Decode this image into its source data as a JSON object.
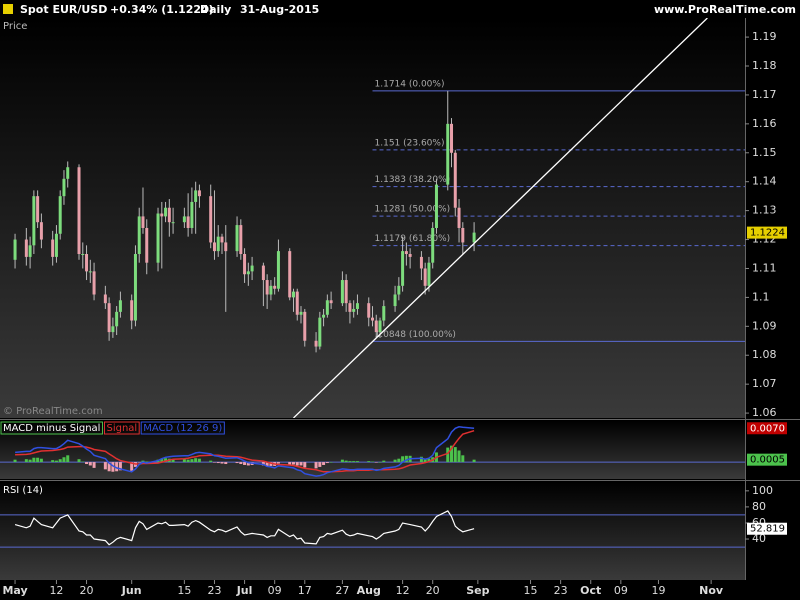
{
  "header": {
    "symbol": "Spot EUR/USD",
    "change": "+0.34% (1.1224)",
    "period": "Daily",
    "date": "31-Aug-2015",
    "site": "www.ProRealTime.com"
  },
  "chart_data": [
    {
      "type": "candlestick",
      "title": "Price",
      "watermark": "© ProRealTime.com",
      "x": [
        "2015-05-01",
        "2015-05-04",
        "2015-05-05",
        "2015-05-06",
        "2015-05-07",
        "2015-05-08",
        "2015-05-11",
        "2015-05-12",
        "2015-05-13",
        "2015-05-14",
        "2015-05-15",
        "2015-05-18",
        "2015-05-19",
        "2015-05-20",
        "2015-05-21",
        "2015-05-22",
        "2015-05-25",
        "2015-05-26",
        "2015-05-27",
        "2015-05-28",
        "2015-05-29",
        "2015-06-01",
        "2015-06-02",
        "2015-06-03",
        "2015-06-04",
        "2015-06-05",
        "2015-06-08",
        "2015-06-09",
        "2015-06-10",
        "2015-06-11",
        "2015-06-12",
        "2015-06-15",
        "2015-06-16",
        "2015-06-17",
        "2015-06-18",
        "2015-06-19",
        "2015-06-22",
        "2015-06-23",
        "2015-06-24",
        "2015-06-25",
        "2015-06-26",
        "2015-06-29",
        "2015-06-30",
        "2015-07-01",
        "2015-07-02",
        "2015-07-03",
        "2015-07-06",
        "2015-07-07",
        "2015-07-08",
        "2015-07-09",
        "2015-07-10",
        "2015-07-13",
        "2015-07-14",
        "2015-07-15",
        "2015-07-16",
        "2015-07-17",
        "2015-07-20",
        "2015-07-21",
        "2015-07-22",
        "2015-07-23",
        "2015-07-24",
        "2015-07-27",
        "2015-07-28",
        "2015-07-29",
        "2015-07-30",
        "2015-07-31",
        "2015-08-03",
        "2015-08-04",
        "2015-08-05",
        "2015-08-06",
        "2015-08-07",
        "2015-08-10",
        "2015-08-11",
        "2015-08-12",
        "2015-08-13",
        "2015-08-14",
        "2015-08-17",
        "2015-08-18",
        "2015-08-19",
        "2015-08-20",
        "2015-08-21",
        "2015-08-24",
        "2015-08-25",
        "2015-08-26",
        "2015-08-27",
        "2015-08-28",
        "2015-08-31"
      ],
      "open": [
        1.113,
        1.12,
        1.114,
        1.118,
        1.135,
        1.126,
        1.12,
        1.114,
        1.122,
        1.135,
        1.141,
        1.145,
        1.115,
        1.115,
        1.109,
        1.109,
        1.101,
        1.098,
        1.088,
        1.09,
        1.095,
        1.099,
        1.092,
        1.115,
        1.128,
        1.124,
        1.112,
        1.129,
        1.128,
        1.131,
        1.126,
        1.126,
        1.128,
        1.124,
        1.133,
        1.137,
        1.135,
        1.119,
        1.116,
        1.121,
        1.119,
        1.116,
        1.125,
        1.115,
        1.108,
        1.109,
        1.111,
        1.106,
        1.101,
        1.104,
        1.103,
        1.116,
        1.1,
        1.102,
        1.094,
        1.095,
        1.085,
        1.083,
        1.093,
        1.094,
        1.099,
        1.098,
        1.106,
        1.098,
        1.095,
        1.096,
        1.098,
        1.093,
        1.092,
        1.088,
        1.092,
        1.097,
        1.101,
        1.104,
        1.116,
        1.115,
        1.114,
        1.11,
        1.104,
        1.112,
        1.124,
        1.139,
        1.16,
        1.15,
        1.131,
        1.124,
        1.119
      ],
      "high": [
        1.122,
        1.124,
        1.121,
        1.137,
        1.137,
        1.129,
        1.123,
        1.125,
        1.137,
        1.144,
        1.147,
        1.146,
        1.119,
        1.118,
        1.113,
        1.112,
        1.104,
        1.1,
        1.093,
        1.097,
        1.102,
        1.101,
        1.118,
        1.131,
        1.138,
        1.127,
        1.131,
        1.133,
        1.133,
        1.134,
        1.131,
        1.131,
        1.136,
        1.138,
        1.14,
        1.139,
        1.139,
        1.137,
        1.125,
        1.122,
        1.125,
        1.128,
        1.127,
        1.117,
        1.112,
        1.114,
        1.112,
        1.108,
        1.106,
        1.107,
        1.12,
        1.117,
        1.103,
        1.103,
        1.097,
        1.096,
        1.088,
        1.095,
        1.096,
        1.101,
        1.102,
        1.109,
        1.108,
        1.099,
        1.099,
        1.101,
        1.1,
        1.097,
        1.094,
        1.093,
        1.099,
        1.104,
        1.107,
        1.121,
        1.119,
        1.117,
        1.116,
        1.112,
        1.114,
        1.126,
        1.141,
        1.1714,
        1.162,
        1.151,
        1.134,
        1.126,
        1.126
      ],
      "low": [
        1.11,
        1.111,
        1.11,
        1.115,
        1.124,
        1.117,
        1.111,
        1.112,
        1.12,
        1.132,
        1.138,
        1.113,
        1.11,
        1.106,
        1.105,
        1.099,
        1.096,
        1.085,
        1.086,
        1.087,
        1.093,
        1.089,
        1.09,
        1.112,
        1.122,
        1.108,
        1.109,
        1.11,
        1.126,
        1.121,
        1.122,
        1.124,
        1.121,
        1.122,
        1.122,
        1.131,
        1.117,
        1.113,
        1.114,
        1.115,
        1.095,
        1.114,
        1.113,
        1.105,
        1.104,
        1.106,
        1.097,
        1.096,
        1.099,
        1.101,
        1.102,
        1.099,
        1.095,
        1.092,
        1.091,
        1.083,
        1.081,
        1.082,
        1.09,
        1.093,
        1.096,
        1.097,
        1.095,
        1.091,
        1.093,
        1.094,
        1.09,
        1.09,
        1.086,
        1.086,
        1.09,
        1.095,
        1.099,
        1.102,
        1.111,
        1.11,
        1.106,
        1.101,
        1.102,
        1.11,
        1.122,
        1.137,
        1.145,
        1.128,
        1.119,
        1.115,
        1.116
      ],
      "close": [
        1.12,
        1.114,
        1.118,
        1.135,
        1.126,
        1.12,
        1.114,
        1.122,
        1.135,
        1.141,
        1.145,
        1.115,
        1.115,
        1.109,
        1.109,
        1.101,
        1.098,
        1.088,
        1.09,
        1.095,
        1.099,
        1.092,
        1.115,
        1.128,
        1.124,
        1.112,
        1.129,
        1.128,
        1.131,
        1.126,
        1.126,
        1.128,
        1.124,
        1.133,
        1.137,
        1.135,
        1.119,
        1.116,
        1.121,
        1.119,
        1.116,
        1.125,
        1.115,
        1.108,
        1.109,
        1.111,
        1.106,
        1.101,
        1.104,
        1.103,
        1.116,
        1.1,
        1.102,
        1.094,
        1.095,
        1.085,
        1.083,
        1.093,
        1.094,
        1.099,
        1.098,
        1.106,
        1.098,
        1.095,
        1.096,
        1.098,
        1.093,
        1.092,
        1.088,
        1.092,
        1.097,
        1.101,
        1.104,
        1.116,
        1.115,
        1.114,
        1.11,
        1.104,
        1.112,
        1.124,
        1.139,
        1.16,
        1.15,
        1.131,
        1.124,
        1.119,
        1.1224
      ],
      "up_color": "#7ddc7d",
      "down_color": "#e8a0aa",
      "wick_color": "#bbbbbb",
      "last_color": "#e6cf00",
      "xlim": [
        "2015-04-27",
        "2015-11-11"
      ],
      "xticks": [
        {
          "value": "2015-05-01",
          "label": "May"
        },
        {
          "value": "2015-05-12",
          "label": "12"
        },
        {
          "value": "2015-05-20",
          "label": "20"
        },
        {
          "value": "2015-06-01",
          "label": "Jun"
        },
        {
          "value": "2015-06-15",
          "label": "15"
        },
        {
          "value": "2015-06-23",
          "label": "23"
        },
        {
          "value": "2015-07-01",
          "label": "Jul"
        },
        {
          "value": "2015-07-09",
          "label": "09"
        },
        {
          "value": "2015-07-17",
          "label": "17"
        },
        {
          "value": "2015-07-27",
          "label": "27"
        },
        {
          "value": "2015-08-03",
          "label": "Aug"
        },
        {
          "value": "2015-08-12",
          "label": "12"
        },
        {
          "value": "2015-08-20",
          "label": "20"
        },
        {
          "value": "2015-09-01",
          "label": "Sep"
        },
        {
          "value": "2015-09-15",
          "label": "15"
        },
        {
          "value": "2015-09-23",
          "label": "23"
        },
        {
          "value": "2015-10-01",
          "label": "Oct"
        },
        {
          "value": "2015-10-09",
          "label": "09"
        },
        {
          "value": "2015-10-19",
          "label": "19"
        },
        {
          "value": "2015-11-02",
          "label": "Nov"
        }
      ],
      "ylim": [
        1.0583,
        1.1966
      ],
      "yticks": [
        1.06,
        1.07,
        1.08,
        1.09,
        1.1,
        1.11,
        1.12,
        1.13,
        1.14,
        1.15,
        1.16,
        1.17,
        1.18,
        1.19
      ],
      "fib_color": "#5a6ad0",
      "fib_from": "2015-08-04",
      "fib": [
        {
          "value": 1.1714,
          "label": "1.1714 (0.00%)",
          "style": "solid"
        },
        {
          "value": 1.151,
          "label": "1.151 (23.60%)",
          "style": "dashed"
        },
        {
          "value": 1.1383,
          "label": "1.1383 (38.20%)",
          "style": "dashed"
        },
        {
          "value": 1.1281,
          "label": "1.1281 (50.00%)",
          "style": "dashed"
        },
        {
          "value": 1.1179,
          "label": "1.1179 (61.80%)",
          "style": "dashed"
        },
        {
          "value": 1.0848,
          "label": "1.0848 (100.00%)",
          "style": "solid"
        }
      ],
      "trendline": {
        "x": [
          "2015-07-14",
          "2015-11-01"
        ],
        "y": [
          1.0583,
          1.1966
        ],
        "color": "#ffffff"
      }
    },
    {
      "type": "macd",
      "ylim": [
        -0.0035,
        0.0085
      ],
      "zero_color": "#5a6ad0",
      "series": [
        {
          "name": "MACD minus Signal",
          "color": "#4cc24c",
          "negative_color": "#f0a0b0",
          "values": [
            0.0005,
            0.0006,
            0.0005,
            0.0009,
            0.0009,
            0.0007,
            0.0004,
            0.0003,
            0.0006,
            0.001,
            0.0014,
            0.0006,
            0.0001,
            -0.0004,
            -0.0007,
            -0.0012,
            -0.0015,
            -0.0019,
            -0.002,
            -0.0019,
            -0.0017,
            -0.0018,
            -0.001,
            -0.0001,
            0.0003,
            0.0001,
            0.0005,
            0.0007,
            0.0008,
            0.0007,
            0.0006,
            0.0006,
            0.0005,
            0.0006,
            0.0008,
            0.0007,
            0.0003,
            -0.0001,
            -0.0002,
            -0.0003,
            -0.0004,
            -0.0002,
            -0.0004,
            -0.0006,
            -0.0007,
            -0.0006,
            -0.0007,
            -0.0009,
            -0.0008,
            -0.0008,
            -0.0003,
            -0.0005,
            -0.0005,
            -0.0007,
            -0.0007,
            -0.0011,
            -0.0013,
            -0.001,
            -0.0006,
            -0.0002,
            0,
            0.0005,
            0.0003,
            0.0002,
            0.0002,
            0.0002,
            0.0002,
            0.0001,
            -0.0001,
            0,
            0.0003,
            0.0005,
            0.0007,
            0.0012,
            0.0013,
            0.0013,
            0.0011,
            0.0007,
            0.0007,
            0.001,
            0.002,
            0.003,
            0.0034,
            0.0031,
            0.0024,
            0.0014,
            0.0005
          ]
        },
        {
          "name": "Signal",
          "color": "#e03030",
          "values": [
            0.0015,
            0.0016,
            0.0017,
            0.0019,
            0.0021,
            0.0023,
            0.0024,
            0.0025,
            0.0026,
            0.0028,
            0.0031,
            0.0032,
            0.0032,
            0.0031,
            0.0029,
            0.0026,
            0.0022,
            0.0017,
            0.0012,
            0.0007,
            0.0003,
            -0.0002,
            -0.0004,
            -0.0004,
            -0.0003,
            -0.0003,
            -0.0002,
            0,
            0.0002,
            0.0004,
            0.0006,
            0.0007,
            0.0008,
            0.001,
            0.0011,
            0.0013,
            0.0014,
            0.0014,
            0.0014,
            0.0013,
            0.0012,
            0.0011,
            0.001,
            0.0008,
            0.0006,
            0.0004,
            0.0002,
            0,
            -0.0002,
            -0.0004,
            -0.0005,
            -0.0006,
            -0.0007,
            -0.0009,
            -0.0011,
            -0.0013,
            -0.0016,
            -0.0018,
            -0.002,
            -0.002,
            -0.002,
            -0.0019,
            -0.0018,
            -0.0018,
            -0.0018,
            -0.0017,
            -0.0017,
            -0.0016,
            -0.0016,
            -0.0016,
            -0.0016,
            -0.0015,
            -0.0014,
            -0.0012,
            -0.0009,
            -0.0006,
            -0.0003,
            -0.0001,
            0.0001,
            0.0004,
            0.001,
            0.0018,
            0.0028,
            0.0039,
            0.0049,
            0.0058,
            0.0065
          ]
        },
        {
          "name": "MACD (12 26 9)",
          "color": "#3050e0",
          "last_label": "0.0070",
          "last_color": "#c00000",
          "values": [
            0.002,
            0.0022,
            0.0022,
            0.0028,
            0.003,
            0.003,
            0.0028,
            0.0028,
            0.0032,
            0.0038,
            0.0045,
            0.0038,
            0.0033,
            0.0027,
            0.0022,
            0.0014,
            0.0007,
            -0.0002,
            -0.0008,
            -0.0012,
            -0.0014,
            -0.002,
            -0.0014,
            -0.0005,
            0,
            -0.0002,
            0.0003,
            0.0007,
            0.001,
            0.0011,
            0.0012,
            0.0013,
            0.0013,
            0.0016,
            0.0019,
            0.002,
            0.0017,
            0.0013,
            0.0012,
            0.001,
            0.0008,
            0.0009,
            0.0006,
            0.0002,
            -0.0001,
            -0.0002,
            -0.0005,
            -0.0009,
            -0.001,
            -0.0012,
            -0.0008,
            -0.0011,
            -0.0012,
            -0.0016,
            -0.0018,
            -0.0024,
            -0.0029,
            -0.0028,
            -0.0026,
            -0.0022,
            -0.002,
            -0.0014,
            -0.0015,
            -0.0016,
            -0.0016,
            -0.0015,
            -0.0015,
            -0.0015,
            -0.0017,
            -0.0016,
            -0.0013,
            -0.001,
            -0.0007,
            0,
            0.0004,
            0.0007,
            0.0008,
            0.0006,
            0.0008,
            0.0014,
            0.003,
            0.0048,
            0.0062,
            0.007,
            0.0073,
            0.0072,
            0.007
          ]
        }
      ]
    },
    {
      "type": "line",
      "title": "RSI (14)",
      "color": "#ffffff",
      "level_color": "#5a6ad0",
      "values": [
        58,
        54,
        56,
        66,
        62,
        58,
        54,
        60,
        66,
        68,
        70,
        50,
        49,
        45,
        45,
        40,
        38,
        33,
        36,
        40,
        42,
        38,
        54,
        62,
        59,
        52,
        60,
        59,
        61,
        57,
        57,
        58,
        56,
        61,
        63,
        61,
        51,
        49,
        52,
        51,
        49,
        55,
        49,
        45,
        46,
        47,
        45,
        42,
        44,
        44,
        52,
        43,
        45,
        40,
        41,
        35,
        34,
        42,
        43,
        47,
        46,
        51,
        46,
        44,
        45,
        47,
        44,
        43,
        40,
        43,
        47,
        50,
        52,
        60,
        59,
        58,
        55,
        50,
        55,
        62,
        68,
        75,
        68,
        56,
        52,
        49,
        52.819
      ],
      "ylim": [
        -11,
        111
      ],
      "yticks": [
        40,
        60,
        80,
        100
      ],
      "levels": [
        30,
        70
      ]
    }
  ]
}
